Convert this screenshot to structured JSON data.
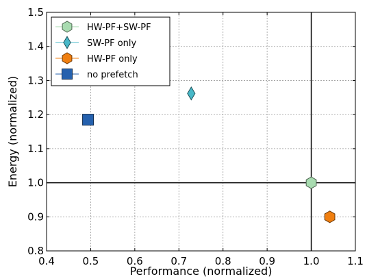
{
  "chart_data": {
    "type": "scatter",
    "xlabel": "Performance (normalized)",
    "ylabel": "Energy (normalized)",
    "xlim": [
      0.4,
      1.1
    ],
    "ylim": [
      0.8,
      1.5
    ],
    "x_ticks": [
      "0.4",
      "0.5",
      "0.6",
      "0.7",
      "0.8",
      "0.9",
      "1.0",
      "1.1"
    ],
    "y_ticks": [
      "0.8",
      "0.9",
      "1.0",
      "1.1",
      "1.2",
      "1.3",
      "1.4",
      "1.5"
    ],
    "grid": true,
    "reference_lines": {
      "x": 1.0,
      "y": 1.0
    },
    "legend_position": "top-left",
    "series": [
      {
        "name": "HW-PF+SW-PF",
        "marker": "hexagon",
        "color": "#a8dbb0",
        "x": [
          1.0
        ],
        "y": [
          1.0
        ]
      },
      {
        "name": "SW-PF  only",
        "marker": "diamond",
        "color": "#48b8c8",
        "x": [
          0.728
        ],
        "y": [
          1.262
        ]
      },
      {
        "name": "HW-PF only",
        "marker": "hexagon",
        "color": "#f07f10",
        "x": [
          1.042
        ],
        "y": [
          0.9
        ]
      },
      {
        "name": "no prefetch",
        "marker": "square",
        "color": "#2561ae",
        "x": [
          0.494
        ],
        "y": [
          1.185
        ]
      }
    ]
  }
}
